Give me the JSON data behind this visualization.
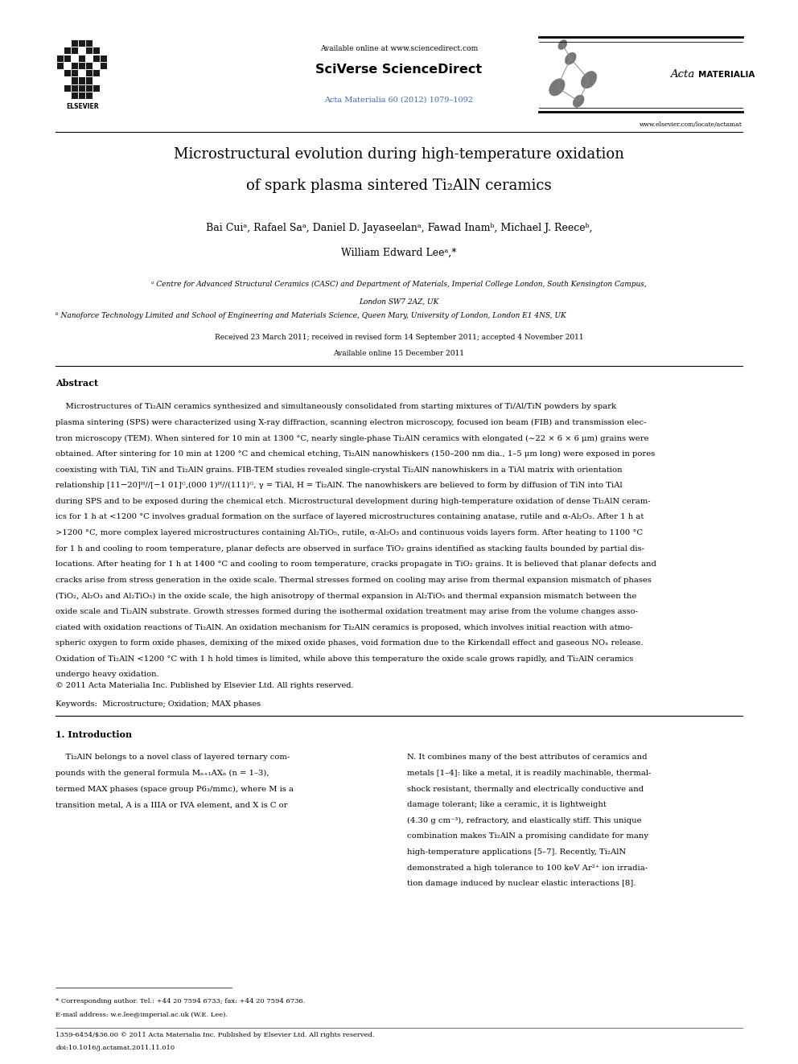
{
  "background_color": "#ffffff",
  "page_width": 9.92,
  "page_height": 13.23,
  "available_online": "Available online at www.sciencedirect.com",
  "sciverse": "SciVerse ScienceDirect",
  "journal_ref": "Acta Materialia 60 (2012) 1079–1092",
  "journal_url": "www.elsevier.com/locate/actamat",
  "title_line1": "Microstructural evolution during high-temperature oxidation",
  "title_line2": "of spark plasma sintered Ti₂AlN ceramics",
  "authors_line1": "Bai Cuiᵃ, Rafael Saᵃ, Daniel D. Jayaseelanᵃ, Fawad Inamᵇ, Michael J. Reeceᵇ,",
  "authors_line2": "William Edward Leeᵃ,*",
  "affiliation_a": "ᵃ Centre for Advanced Structural Ceramics (CASC) and Department of Materials, Imperial College London, South Kensington Campus,",
  "affiliation_a2": "London SW7 2AZ, UK",
  "affiliation_b": "ᵇ Nanoforce Technology Limited and School of Engineering and Materials Science, Queen Mary, University of London, London E1 4NS, UK",
  "received": "Received 23 March 2011; received in revised form 14 September 2011; accepted 4 November 2011",
  "available": "Available online 15 December 2011",
  "abstract_title": "Abstract",
  "abstract_line1": "    Microstructures of Ti₂AlN ceramics synthesized and simultaneously consolidated from starting mixtures of Ti/Al/TiN powders by spark",
  "abstract_line2": "plasma sintering (SPS) were characterized using X-ray diffraction, scanning electron microscopy, focused ion beam (FIB) and transmission elec-",
  "abstract_line3": "tron microscopy (TEM). When sintered for 10 min at 1300 °C, nearly single-phase Ti₂AlN ceramics with elongated (∼22 × 6 × 6 μm) grains were",
  "abstract_line4": "obtained. After sintering for 10 min at 1200 °C and chemical etching, Ti₂AlN nanowhiskers (150–200 nm dia., 1–5 μm long) were exposed in pores",
  "abstract_line5": "coexisting with TiAl, TiN and Ti₂AlN grains. FIB-TEM studies revealed single-crystal Ti₂AlN nanowhiskers in a TiAl matrix with orientation",
  "abstract_line6": "relationship [11−20]ᴴ//[−1 01]ᴳ,(000 1)ᴴ//(111)ᴳ, γ = TiAl, H = Ti₂AlN. The nanowhiskers are believed to form by diffusion of TiN into TiAl",
  "abstract_line7": "during SPS and to be exposed during the chemical etch. Microstructural development during high-temperature oxidation of dense Ti₂AlN ceram-",
  "abstract_line8": "ics for 1 h at <1200 °C involves gradual formation on the surface of layered microstructures containing anatase, rutile and α-Al₂O₃. After 1 h at",
  "abstract_line9": ">1200 °C, more complex layered microstructures containing Al₂TiO₅, rutile, α-Al₂O₃ and continuous voids layers form. After heating to 1100 °C",
  "abstract_line10": "for 1 h and cooling to room temperature, planar defects are observed in surface TiO₂ grains identified as stacking faults bounded by partial dis-",
  "abstract_line11": "locations. After heating for 1 h at 1400 °C and cooling to room temperature, cracks propagate in TiO₂ grains. It is believed that planar defects and",
  "abstract_line12": "cracks arise from stress generation in the oxide scale. Thermal stresses formed on cooling may arise from thermal expansion mismatch of phases",
  "abstract_line13": "(TiO₂, Al₂O₃ and Al₂TiO₅) in the oxide scale, the high anisotropy of thermal expansion in Al₂TiO₅ and thermal expansion mismatch between the",
  "abstract_line14": "oxide scale and Ti₂AlN substrate. Growth stresses formed during the isothermal oxidation treatment may arise from the volume changes asso-",
  "abstract_line15": "ciated with oxidation reactions of Ti₂AlN. An oxidation mechanism for Ti₂AlN ceramics is proposed, which involves initial reaction with atmo-",
  "abstract_line16": "spheric oxygen to form oxide phases, demixing of the mixed oxide phases, void formation due to the Kirkendall effect and gaseous NOₓ release.",
  "abstract_line17": "Oxidation of Ti₂AlN <1200 °C with 1 h hold times is limited, while above this temperature the oxide scale grows rapidly, and Ti₂AlN ceramics",
  "abstract_line18": "undergo heavy oxidation.",
  "copyright": "© 2011 Acta Materialia Inc. Published by Elsevier Ltd. All rights reserved.",
  "keywords": "Keywords:  Microstructure; Oxidation; MAX phases",
  "sec1_title": "1. Introduction",
  "col1_line1": "    Ti₂AlN belongs to a novel class of layered ternary com-",
  "col1_line2": "pounds with the general formula Mₙ₊₁AXₙ (n = 1–3),",
  "col1_line3": "termed MAX phases (space group P6₃/mmc), where M is a",
  "col1_line4": "transition metal, A is a IIIA or IVA element, and X is C or",
  "col2_line1": "N. It combines many of the best attributes of ceramics and",
  "col2_line2": "metals [1–4]: like a metal, it is readily machinable, thermal-",
  "col2_line3": "shock resistant, thermally and electrically conductive and",
  "col2_line4": "damage tolerant; like a ceramic, it is lightweight",
  "col2_line5": "(4.30 g cm⁻³), refractory, and elastically stiff. This unique",
  "col2_line6": "combination makes Ti₂AlN a promising candidate for many",
  "col2_line7": "high-temperature applications [5–7]. Recently, Ti₂AlN",
  "col2_line8": "demonstrated a high tolerance to 100 keV Ar²⁺ ion irradia-",
  "col2_line9": "tion damage induced by nuclear elastic interactions [8].",
  "footnote1": "* Corresponding author. Tel.: +44 20 7594 6733; fax: +44 20 7594 6736.",
  "footnote2": "E-mail address: w.e.lee@imperial.ac.uk (W.E. Lee).",
  "bottom1": "1359-6454/$36.00 © 2011 Acta Materialia Inc. Published by Elsevier Ltd. All rights reserved.",
  "bottom2": "doi:10.1016/j.actamat.2011.11.010",
  "blue_color": "#4169b0",
  "lm": 0.07,
  "rm": 0.93,
  "cm": 0.5
}
